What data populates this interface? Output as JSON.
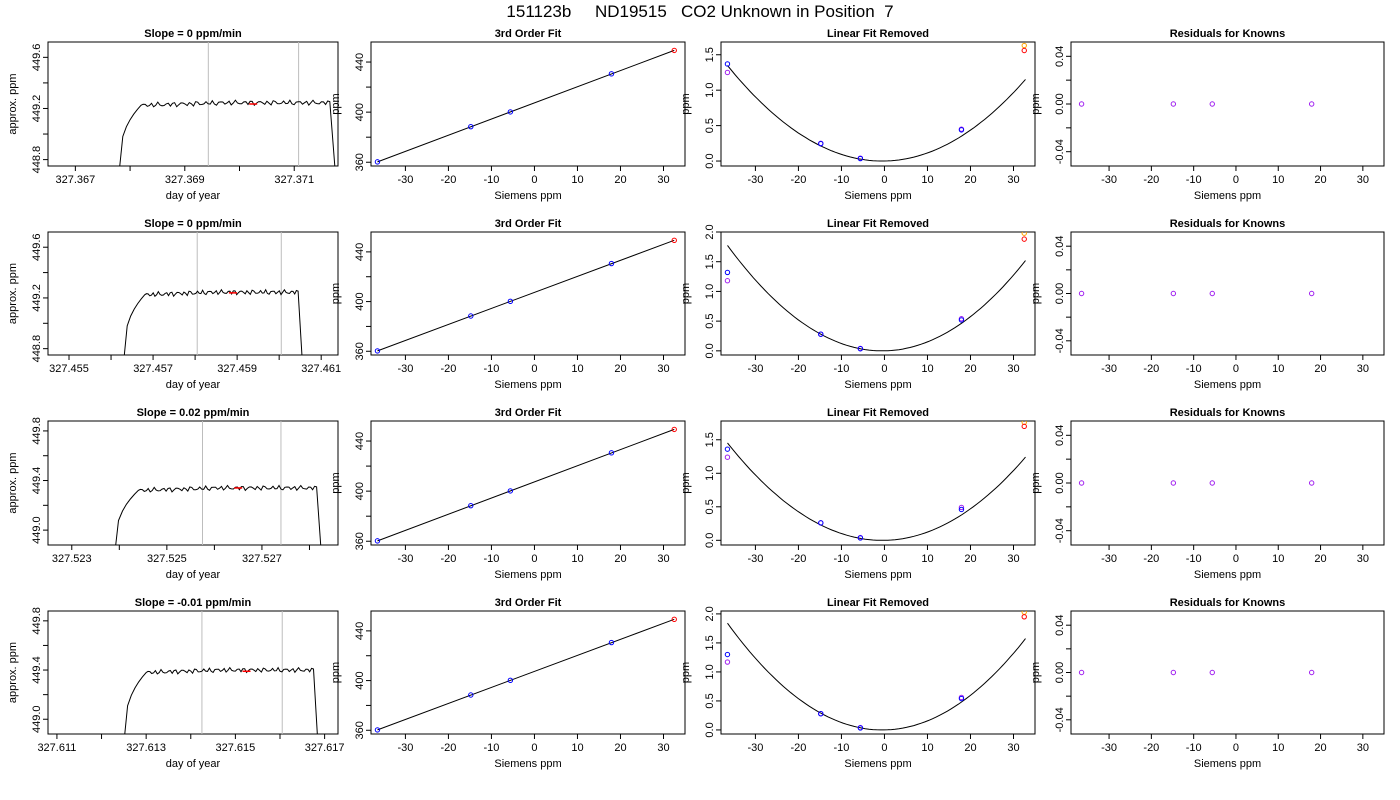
{
  "header": {
    "title": "151123b     ND19515   CO2 Unknown in Position  7"
  },
  "colors": {
    "axis": "#000000",
    "trace": "#000000",
    "guide_lines": "#bdbdbd",
    "highlight": "#ff0000",
    "known_fit": "#0000ff",
    "known_raw": "#a020f0",
    "unknown_raw": "#ffa500"
  },
  "chart_data": [
    {
      "type": "line",
      "title": "Slope =  0  ppm/min",
      "xlabel": "day of year",
      "ylabel": "approx. ppm",
      "xlim": [
        327.3665,
        327.3718
      ],
      "ylim": [
        448.75,
        449.72
      ],
      "xticks": [
        327.367,
        327.368,
        327.369,
        327.37,
        327.371,
        327.372
      ],
      "xtick_labels": [
        "327.367",
        "",
        "327.369",
        "",
        "327.371",
        ""
      ],
      "yticks": [
        448.8,
        449.0,
        449.2,
        449.4,
        449.6
      ],
      "ytick_labels": [
        "448.8",
        "",
        "449.2",
        "",
        "449.6"
      ],
      "trace": {
        "x_start": 327.3678,
        "x_rise_end": 327.3682,
        "x_end": 327.37165,
        "x_fall": 327.37175,
        "level": 449.245,
        "bottom": 448.7
      },
      "guide_lines_x": [
        327.36943,
        327.37108
      ],
      "highlight_point": {
        "x": 327.37025,
        "y": 449.235
      }
    },
    {
      "type": "line",
      "title": "Slope =  0  ppm/min",
      "xlabel": "day of year",
      "ylabel": "approx. ppm",
      "xlim": [
        327.4545,
        327.4614
      ],
      "ylim": [
        448.75,
        449.72
      ],
      "xticks": [
        327.455,
        327.456,
        327.457,
        327.458,
        327.459,
        327.46,
        327.461
      ],
      "xtick_labels": [
        "327.455",
        "",
        "327.457",
        "",
        "327.459",
        "",
        "327.461"
      ],
      "yticks": [
        448.8,
        449.0,
        449.2,
        449.4,
        449.6
      ],
      "ytick_labels": [
        "448.8",
        "",
        "449.2",
        "",
        "449.6"
      ],
      "trace": {
        "x_start": 327.4563,
        "x_rise_end": 327.4568,
        "x_end": 327.46045,
        "x_fall": 327.46055,
        "level": 449.245,
        "bottom": 448.7
      },
      "guide_lines_x": [
        327.45805,
        327.46005
      ],
      "highlight_point": {
        "x": 327.4589,
        "y": 449.24
      }
    },
    {
      "type": "line",
      "title": "Slope =  0.02  ppm/min",
      "xlabel": "day of year",
      "ylabel": "approx. ppm",
      "xlim": [
        327.5225,
        327.5286
      ],
      "ylim": [
        448.88,
        449.88
      ],
      "xticks": [
        327.523,
        327.524,
        327.525,
        327.526,
        327.527,
        327.528
      ],
      "xtick_labels": [
        "327.523",
        "",
        "327.525",
        "",
        "327.527",
        ""
      ],
      "yticks": [
        449.0,
        449.2,
        449.4,
        449.6,
        449.8
      ],
      "ytick_labels": [
        "449.0",
        "",
        "449.4",
        "",
        "449.8"
      ],
      "trace": {
        "x_start": 327.5239,
        "x_rise_end": 327.5244,
        "x_end": 327.52815,
        "x_fall": 327.52825,
        "level": 449.34,
        "bottom": 448.8
      },
      "guide_lines_x": [
        327.52575,
        327.5274
      ],
      "highlight_point": {
        "x": 327.5265,
        "y": 449.34
      }
    },
    {
      "type": "line",
      "title": "Slope =  -0.01  ppm/min",
      "xlabel": "day of year",
      "ylabel": "approx. ppm",
      "xlim": [
        327.6108,
        327.6173
      ],
      "ylim": [
        448.88,
        449.88
      ],
      "xticks": [
        327.611,
        327.612,
        327.613,
        327.614,
        327.615,
        327.616,
        327.617
      ],
      "xtick_labels": [
        "327.611",
        "",
        "327.613",
        "",
        "327.615",
        "",
        "327.617"
      ],
      "yticks": [
        449.0,
        449.2,
        449.4,
        449.6,
        449.8
      ],
      "ytick_labels": [
        "449.0",
        "",
        "449.4",
        "",
        "449.8"
      ],
      "trace": {
        "x_start": 327.6125,
        "x_rise_end": 327.613,
        "x_end": 327.61675,
        "x_fall": 327.61685,
        "level": 449.4,
        "bottom": 448.8
      },
      "guide_lines_x": [
        327.61425,
        327.61605
      ],
      "highlight_point": {
        "x": 327.61525,
        "y": 449.39
      }
    },
    {
      "type": "scatter",
      "title": "3rd Order Fit",
      "xlabel": "Siemens ppm",
      "ylabel": "ppm",
      "xlim": [
        -38,
        35
      ],
      "ylim": [
        357,
        456
      ],
      "xticks": [
        -30,
        -20,
        -10,
        0,
        10,
        20,
        30
      ],
      "xtick_labels": [
        "-30",
        "-20",
        "-10",
        "0",
        "10",
        "20",
        "30"
      ],
      "yticks": [
        360,
        380,
        400,
        420,
        440
      ],
      "ytick_labels": [
        "360",
        "",
        "400",
        "",
        "440"
      ],
      "fit_line": {
        "x": [
          -36.5,
          32.5
        ],
        "y": [
          360.3,
          449.3
        ]
      },
      "points": [
        {
          "x": -36.5,
          "y": 360.3
        },
        {
          "x": -14.8,
          "y": 388.4
        },
        {
          "x": -5.6,
          "y": 400.2
        },
        {
          "x": 17.9,
          "y": 430.6
        }
      ],
      "unknown_point": {
        "x": 32.5,
        "y": 449.3
      }
    },
    {
      "type": "scatter",
      "title": "3rd Order Fit",
      "xlabel": "Siemens ppm",
      "ylabel": "ppm",
      "xlim": [
        -38,
        35
      ],
      "ylim": [
        357,
        456
      ],
      "xticks": [
        -30,
        -20,
        -10,
        0,
        10,
        20,
        30
      ],
      "xtick_labels": [
        "-30",
        "-20",
        "-10",
        "0",
        "10",
        "20",
        "30"
      ],
      "yticks": [
        360,
        380,
        400,
        420,
        440
      ],
      "ytick_labels": [
        "360",
        "",
        "400",
        "",
        "440"
      ],
      "fit_line": {
        "x": [
          -36.5,
          32.5
        ],
        "y": [
          360.3,
          449.3
        ]
      },
      "points": [
        {
          "x": -36.5,
          "y": 360.3
        },
        {
          "x": -14.8,
          "y": 388.4
        },
        {
          "x": -5.6,
          "y": 400.2
        },
        {
          "x": 17.9,
          "y": 430.6
        }
      ],
      "unknown_point": {
        "x": 32.5,
        "y": 449.3
      }
    },
    {
      "type": "scatter",
      "title": "3rd Order Fit",
      "xlabel": "Siemens ppm",
      "ylabel": "ppm",
      "xlim": [
        -38,
        35
      ],
      "ylim": [
        357,
        456
      ],
      "xticks": [
        -30,
        -20,
        -10,
        0,
        10,
        20,
        30
      ],
      "xtick_labels": [
        "-30",
        "-20",
        "-10",
        "0",
        "10",
        "20",
        "30"
      ],
      "yticks": [
        360,
        380,
        400,
        420,
        440
      ],
      "ytick_labels": [
        "360",
        "",
        "400",
        "",
        "440"
      ],
      "fit_line": {
        "x": [
          -36.5,
          32.5
        ],
        "y": [
          360.3,
          449.3
        ]
      },
      "points": [
        {
          "x": -36.5,
          "y": 360.3
        },
        {
          "x": -14.8,
          "y": 388.4
        },
        {
          "x": -5.6,
          "y": 400.2
        },
        {
          "x": 17.9,
          "y": 430.6
        }
      ],
      "unknown_point": {
        "x": 32.5,
        "y": 449.3
      }
    },
    {
      "type": "scatter",
      "title": "3rd Order Fit",
      "xlabel": "Siemens ppm",
      "ylabel": "ppm",
      "xlim": [
        -38,
        35
      ],
      "ylim": [
        357,
        456
      ],
      "xticks": [
        -30,
        -20,
        -10,
        0,
        10,
        20,
        30
      ],
      "xtick_labels": [
        "-30",
        "-20",
        "-10",
        "0",
        "10",
        "20",
        "30"
      ],
      "yticks": [
        360,
        380,
        400,
        420,
        440
      ],
      "ytick_labels": [
        "360",
        "",
        "400",
        "",
        "440"
      ],
      "fit_line": {
        "x": [
          -36.5,
          32.5
        ],
        "y": [
          360.3,
          449.3
        ]
      },
      "points": [
        {
          "x": -36.5,
          "y": 360.3
        },
        {
          "x": -14.8,
          "y": 388.4
        },
        {
          "x": -5.6,
          "y": 400.2
        },
        {
          "x": 17.9,
          "y": 430.6
        }
      ],
      "unknown_point": {
        "x": 32.5,
        "y": 449.3
      }
    },
    {
      "type": "scatter",
      "title": "Linear Fit Removed",
      "xlabel": "Siemens ppm",
      "ylabel": "ppm",
      "xlim": [
        -38,
        35
      ],
      "ylim": [
        -0.07,
        1.68
      ],
      "xticks": [
        -30,
        -20,
        -10,
        0,
        10,
        20,
        30
      ],
      "xtick_labels": [
        "-30",
        "-20",
        "-10",
        "0",
        "10",
        "20",
        "30"
      ],
      "yticks": [
        0.0,
        0.5,
        1.0,
        1.5
      ],
      "ytick_labels": [
        "0.0",
        "0.5",
        "1.0",
        "1.5"
      ],
      "curve": {
        "a": 0.00104,
        "b": 0.00101,
        "c": 0.0,
        "x_from": -36.5,
        "x_to": 32.8
      },
      "fit_points": [
        {
          "x": -36.5,
          "y": 1.37
        },
        {
          "x": -14.8,
          "y": 0.245
        },
        {
          "x": -5.6,
          "y": 0.035
        },
        {
          "x": 17.9,
          "y": 0.44
        }
      ],
      "raw_points": [
        {
          "x": -36.5,
          "y": 1.25
        },
        {
          "x": -14.8,
          "y": 0.25
        },
        {
          "x": -5.6,
          "y": 0.04
        },
        {
          "x": 17.9,
          "y": 0.45
        }
      ],
      "unknown_fit": {
        "x": 32.5,
        "y": 1.56
      },
      "unknown_raw": {
        "x": 32.5,
        "y": 1.63
      }
    },
    {
      "type": "scatter",
      "title": "Linear Fit Removed",
      "xlabel": "Siemens ppm",
      "ylabel": "ppm",
      "xlim": [
        -38,
        35
      ],
      "ylim": [
        -0.07,
        2.0
      ],
      "xticks": [
        -30,
        -20,
        -10,
        0,
        10,
        20,
        30
      ],
      "xtick_labels": [
        "-30",
        "-20",
        "-10",
        "0",
        "10",
        "20",
        "30"
      ],
      "yticks": [
        0.0,
        0.5,
        1.0,
        1.5,
        2.0
      ],
      "ytick_labels": [
        "0.0",
        "0.5",
        "1.0",
        "1.5",
        "2.0"
      ],
      "curve": {
        "a": 0.00137,
        "b": 0.00137,
        "c": 0.0,
        "x_from": -36.5,
        "x_to": 32.8
      },
      "fit_points": [
        {
          "x": -36.5,
          "y": 1.32
        },
        {
          "x": -14.8,
          "y": 0.28
        },
        {
          "x": -5.6,
          "y": 0.035
        },
        {
          "x": 17.9,
          "y": 0.52
        }
      ],
      "raw_points": [
        {
          "x": -36.5,
          "y": 1.18
        },
        {
          "x": -14.8,
          "y": 0.28
        },
        {
          "x": -5.6,
          "y": 0.04
        },
        {
          "x": 17.9,
          "y": 0.54
        }
      ],
      "unknown_fit": {
        "x": 32.5,
        "y": 1.88
      },
      "unknown_raw": {
        "x": 32.5,
        "y": 1.98
      }
    },
    {
      "type": "scatter",
      "title": "Linear Fit Removed",
      "xlabel": "Siemens ppm",
      "ylabel": "ppm",
      "xlim": [
        -38,
        35
      ],
      "ylim": [
        -0.07,
        1.78
      ],
      "xticks": [
        -30,
        -20,
        -10,
        0,
        10,
        20,
        30
      ],
      "xtick_labels": [
        "-30",
        "-20",
        "-10",
        "0",
        "10",
        "20",
        "30"
      ],
      "yticks": [
        0.0,
        0.5,
        1.0,
        1.5
      ],
      "ytick_labels": [
        "0.0",
        "0.5",
        "1.0",
        "1.5"
      ],
      "curve": {
        "a": 0.00112,
        "b": 0.0011,
        "c": 0.0,
        "x_from": -36.5,
        "x_to": 32.8
      },
      "fit_points": [
        {
          "x": -36.5,
          "y": 1.36
        },
        {
          "x": -14.8,
          "y": 0.26
        },
        {
          "x": -5.6,
          "y": 0.035
        },
        {
          "x": 17.9,
          "y": 0.46
        }
      ],
      "raw_points": [
        {
          "x": -36.5,
          "y": 1.24
        },
        {
          "x": -14.8,
          "y": 0.26
        },
        {
          "x": -5.6,
          "y": 0.04
        },
        {
          "x": 17.9,
          "y": 0.49
        }
      ],
      "unknown_fit": {
        "x": 32.5,
        "y": 1.7
      },
      "unknown_raw": {
        "x": 32.5,
        "y": 1.76
      }
    },
    {
      "type": "scatter",
      "title": "Linear Fit Removed",
      "xlabel": "Siemens ppm",
      "ylabel": "ppm",
      "xlim": [
        -38,
        35
      ],
      "ylim": [
        -0.07,
        2.05
      ],
      "xticks": [
        -30,
        -20,
        -10,
        0,
        10,
        20,
        30
      ],
      "xtick_labels": [
        "-30",
        "-20",
        "-10",
        "0",
        "10",
        "20",
        "30"
      ],
      "yticks": [
        0.0,
        0.5,
        1.0,
        1.5,
        2.0
      ],
      "ytick_labels": [
        "0.0",
        "0.5",
        "1.0",
        "1.5",
        "2.0"
      ],
      "curve": {
        "a": 0.00142,
        "b": 0.00142,
        "c": 0.0,
        "x_from": -36.5,
        "x_to": 32.8
      },
      "fit_points": [
        {
          "x": -36.5,
          "y": 1.3
        },
        {
          "x": -14.8,
          "y": 0.28
        },
        {
          "x": -5.6,
          "y": 0.035
        },
        {
          "x": 17.9,
          "y": 0.54
        }
      ],
      "raw_points": [
        {
          "x": -36.5,
          "y": 1.17
        },
        {
          "x": -14.8,
          "y": 0.28
        },
        {
          "x": -5.6,
          "y": 0.04
        },
        {
          "x": 17.9,
          "y": 0.56
        }
      ],
      "unknown_fit": {
        "x": 32.5,
        "y": 1.95
      },
      "unknown_raw": {
        "x": 32.5,
        "y": 2.03
      }
    },
    {
      "type": "scatter",
      "title": "Residuals for Knowns",
      "xlabel": "Siemens ppm",
      "ylabel": "ppm",
      "xlim": [
        -39,
        35
      ],
      "ylim": [
        -0.052,
        0.052
      ],
      "xticks": [
        -30,
        -20,
        -10,
        0,
        10,
        20,
        30
      ],
      "xtick_labels": [
        "-30",
        "-20",
        "-10",
        "0",
        "10",
        "20",
        "30"
      ],
      "yticks": [
        -0.04,
        -0.02,
        0.0,
        0.02,
        0.04
      ],
      "ytick_labels": [
        "-0.04",
        "",
        "0.00",
        "",
        "0.04"
      ],
      "points": [
        {
          "x": -36.5,
          "y": 0.0
        },
        {
          "x": -14.8,
          "y": 0.0
        },
        {
          "x": -5.6,
          "y": 0.0
        },
        {
          "x": 17.9,
          "y": 0.0
        }
      ]
    },
    {
      "type": "scatter",
      "title": "Residuals for Knowns",
      "xlabel": "Siemens ppm",
      "ylabel": "ppm",
      "xlim": [
        -39,
        35
      ],
      "ylim": [
        -0.052,
        0.052
      ],
      "xticks": [
        -30,
        -20,
        -10,
        0,
        10,
        20,
        30
      ],
      "xtick_labels": [
        "-30",
        "-20",
        "-10",
        "0",
        "10",
        "20",
        "30"
      ],
      "yticks": [
        -0.04,
        -0.02,
        0.0,
        0.02,
        0.04
      ],
      "ytick_labels": [
        "-0.04",
        "",
        "0.00",
        "",
        "0.04"
      ],
      "points": [
        {
          "x": -36.5,
          "y": 0.0
        },
        {
          "x": -14.8,
          "y": 0.0
        },
        {
          "x": -5.6,
          "y": 0.0
        },
        {
          "x": 17.9,
          "y": 0.0
        }
      ]
    },
    {
      "type": "scatter",
      "title": "Residuals for Knowns",
      "xlabel": "Siemens ppm",
      "ylabel": "ppm",
      "xlim": [
        -39,
        35
      ],
      "ylim": [
        -0.052,
        0.052
      ],
      "xticks": [
        -30,
        -20,
        -10,
        0,
        10,
        20,
        30
      ],
      "xtick_labels": [
        "-30",
        "-20",
        "-10",
        "0",
        "10",
        "20",
        "30"
      ],
      "yticks": [
        -0.04,
        -0.02,
        0.0,
        0.02,
        0.04
      ],
      "ytick_labels": [
        "-0.04",
        "",
        "0.00",
        "",
        "0.04"
      ],
      "points": [
        {
          "x": -36.5,
          "y": 0.0
        },
        {
          "x": -14.8,
          "y": 0.0
        },
        {
          "x": -5.6,
          "y": 0.0
        },
        {
          "x": 17.9,
          "y": 0.0
        }
      ]
    },
    {
      "type": "scatter",
      "title": "Residuals for Knowns",
      "xlabel": "Siemens ppm",
      "ylabel": "ppm",
      "xlim": [
        -39,
        35
      ],
      "ylim": [
        -0.052,
        0.052
      ],
      "xticks": [
        -30,
        -20,
        -10,
        0,
        10,
        20,
        30
      ],
      "xtick_labels": [
        "-30",
        "-20",
        "-10",
        "0",
        "10",
        "20",
        "30"
      ],
      "yticks": [
        -0.04,
        -0.02,
        0.0,
        0.02,
        0.04
      ],
      "ytick_labels": [
        "-0.04",
        "",
        "0.00",
        "",
        "0.04"
      ],
      "points": [
        {
          "x": -36.5,
          "y": 0.0
        },
        {
          "x": -14.8,
          "y": 0.0
        },
        {
          "x": -5.6,
          "y": 0.0
        },
        {
          "x": 17.9,
          "y": 0.0
        }
      ]
    }
  ]
}
